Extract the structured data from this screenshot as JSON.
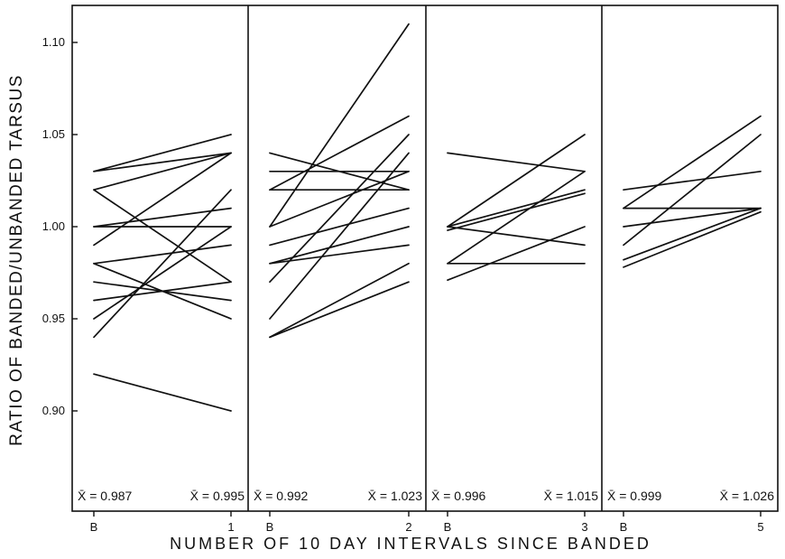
{
  "chart_data": {
    "type": "line",
    "ylabel": "RATIO OF BANDED/UNBANDED TARSUS",
    "xlabel": "NUMBER OF 10 DAY INTERVALS SINCE BANDED",
    "ylim": [
      0.85,
      1.12
    ],
    "y_ticks": [
      {
        "value": 0.9,
        "label": "0.90"
      },
      {
        "value": 0.95,
        "label": "0.95"
      },
      {
        "value": 1.0,
        "label": "1.00"
      },
      {
        "value": 1.05,
        "label": "1.05"
      },
      {
        "value": 1.1,
        "label": "1.10"
      }
    ],
    "grid": false,
    "legend": "none",
    "panels": [
      {
        "categories": [
          "B",
          "1"
        ],
        "mean_start": "X̄ = 0.987",
        "mean_end": "X̄ = 0.995",
        "series": [
          {
            "values": [
              1.03,
              1.05
            ]
          },
          {
            "values": [
              1.03,
              1.04
            ]
          },
          {
            "values": [
              1.02,
              1.04
            ]
          },
          {
            "values": [
              1.02,
              0.97
            ]
          },
          {
            "values": [
              1.0,
              1.01
            ]
          },
          {
            "values": [
              1.0,
              1.0
            ]
          },
          {
            "values": [
              0.99,
              1.04
            ]
          },
          {
            "values": [
              0.98,
              0.99
            ]
          },
          {
            "values": [
              0.98,
              0.95
            ]
          },
          {
            "values": [
              0.97,
              0.96
            ]
          },
          {
            "values": [
              0.96,
              0.97
            ]
          },
          {
            "values": [
              0.95,
              1.0
            ]
          },
          {
            "values": [
              0.94,
              1.02
            ]
          },
          {
            "values": [
              0.92,
              0.9
            ]
          }
        ]
      },
      {
        "categories": [
          "B",
          "2"
        ],
        "mean_start": "X̄ = 0.992",
        "mean_end": "X̄ = 1.023",
        "series": [
          {
            "values": [
              1.04,
              1.02
            ]
          },
          {
            "values": [
              1.03,
              1.03
            ]
          },
          {
            "values": [
              1.02,
              1.06
            ]
          },
          {
            "values": [
              1.02,
              1.02
            ]
          },
          {
            "values": [
              1.0,
              1.11
            ]
          },
          {
            "values": [
              1.0,
              1.03
            ]
          },
          {
            "values": [
              0.99,
              1.01
            ]
          },
          {
            "values": [
              0.98,
              1.0
            ]
          },
          {
            "values": [
              0.98,
              0.99
            ]
          },
          {
            "values": [
              0.97,
              1.05
            ]
          },
          {
            "values": [
              0.95,
              1.04
            ]
          },
          {
            "values": [
              0.94,
              0.98
            ]
          },
          {
            "values": [
              0.94,
              0.97
            ]
          }
        ]
      },
      {
        "categories": [
          "B",
          "3"
        ],
        "mean_start": "X̄ = 0.996",
        "mean_end": "X̄ = 1.015",
        "series": [
          {
            "values": [
              1.04,
              1.03
            ]
          },
          {
            "values": [
              1.0,
              1.05
            ]
          },
          {
            "values": [
              1.0,
              1.02
            ]
          },
          {
            "values": [
              0.998,
              1.018
            ]
          },
          {
            "values": [
              1.0,
              0.99
            ]
          },
          {
            "values": [
              0.98,
              1.03
            ]
          },
          {
            "values": [
              0.98,
              0.98
            ]
          },
          {
            "values": [
              0.971,
              1.0
            ]
          }
        ]
      },
      {
        "categories": [
          "B",
          "5"
        ],
        "mean_start": "X̄ = 0.999",
        "mean_end": "X̄ = 1.026",
        "series": [
          {
            "values": [
              1.02,
              1.03
            ]
          },
          {
            "values": [
              1.01,
              1.06
            ]
          },
          {
            "values": [
              1.01,
              1.01
            ]
          },
          {
            "values": [
              1.0,
              1.01
            ]
          },
          {
            "values": [
              0.99,
              1.05
            ]
          },
          {
            "values": [
              0.982,
              1.01
            ]
          },
          {
            "values": [
              0.978,
              1.008
            ]
          }
        ]
      }
    ]
  }
}
